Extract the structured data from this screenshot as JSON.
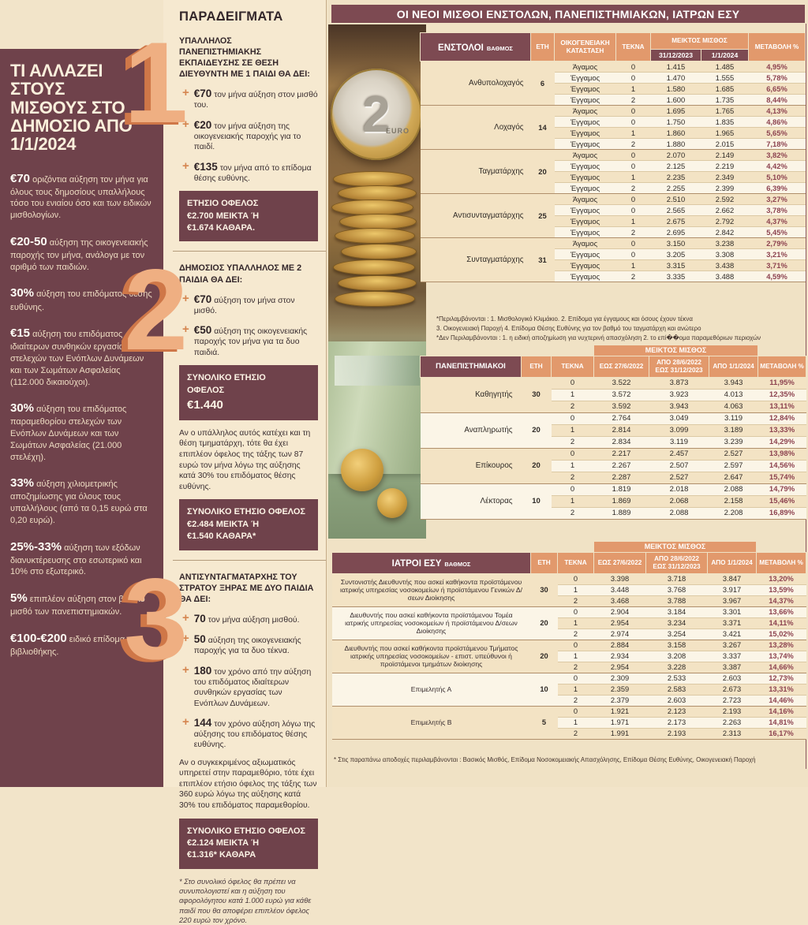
{
  "colors": {
    "maroon": "#7d4a52",
    "salmon": "#e2996c",
    "sidebar_maroon": "#6f424b",
    "accent_orange": "#d5854f",
    "cream": "#f2e4c9"
  },
  "main": {
    "title": "ΟΙ ΝΕΟΙ ΜΙΣΘΟΙ ΕΝΣΤΟΛΩΝ, ΠΑΝΕΠΙΣΤΗΜΙΑΚΩΝ, ΙΑΤΡΩΝ ΕΣΥ"
  },
  "photo": {
    "coin_number": "2",
    "coin_label": "EURO"
  },
  "sidebar": {
    "title": "ΤΙ ΑΛΛΑΖΕΙ ΣΤΟΥΣ ΜΙΣΘΟΥΣ ΣΤΟ ΔΗΜΟΣΙΟ ΑΠΟ 1/1/2024",
    "items": [
      {
        "highlight": "€70",
        "text": "οριζόντια αύξηση τον μήνα για όλους τους δημοσίους υπαλλήλους τόσο του ενιαίου όσο και των ειδικών μισθολογίων."
      },
      {
        "highlight": "€20-50",
        "text": "αύξηση της οικογενειακής παροχής τον μήνα, ανάλογα με τον αριθμό των παιδιών."
      },
      {
        "highlight": "30%",
        "text": "αύξηση του επιδόματος θέσης ευθύνης."
      },
      {
        "highlight": "€15",
        "text": "αύξηση του επιδόματος ιδιαίτερων συνθηκών εργασίας των στελεχών των Ενόπλων Δυνάμεων και των Σωμάτων Ασφαλείας (112.000 δικαιούχοι)."
      },
      {
        "highlight": "30%",
        "text": "αύξηση του επιδόματος παραμεθορίου στελεχών των Ενόπλων Δυνάμεων και των Σωμάτων Ασφαλείας (21.000 στελέχη)."
      },
      {
        "highlight": "33%",
        "text": "αύξηση χιλιομετρικής αποζημίωσης για όλους τους υπαλλήλους (από τα 0,15 ευρώ στα 0,20 ευρώ)."
      },
      {
        "highlight": "25%-33%",
        "text": "αύξηση των εξόδων διανυκτέρευσης στο εσωτερικό και 10% στο εξωτερικό."
      },
      {
        "highlight": "5%",
        "text": "επιπλέον αύξηση στον βασικό μισθό των πανεπιστημιακών."
      },
      {
        "highlight": "€100-€200",
        "text": "ειδικό επίδομα βιβλιοθήκης."
      }
    ]
  },
  "examples": {
    "title": "ΠΑΡΑΔΕΙΓΜΑΤΑ",
    "ex1": {
      "number": "1",
      "heading": "ΥΠΑΛΛΗΛΟΣ ΠΑΝΕΠΙΣΤΗΜΙΑΚΗΣ ΕΚΠΑΙΔΕΥΣΗΣ ΣΕ ΘΕΣΗ ΔΙΕΥΘΥΝΤΗ ΜΕ 1 ΠΑΙΔΙ ΘΑ ΔΕΙ:",
      "bullets": [
        {
          "amount": "€70",
          "text": "τον μήνα αύξηση στον μισθό του."
        },
        {
          "amount": "€20",
          "text": "τον μήνα αύξηση της οικογενειακής παροχής για το παιδί."
        },
        {
          "amount": "€135",
          "text": "τον μήνα από το επίδομα θέσης ευθύνης."
        }
      ],
      "box": [
        "ΕΤΗΣΙΟ ΟΦΕΛΟΣ",
        "€2.700 ΜΕΙΚΤΑ Ή",
        "€1.674 ΚΑΘΑΡΑ."
      ]
    },
    "ex2": {
      "number": "2",
      "heading": "ΔΗΜΟΣΙΟΣ ΥΠΑΛΛΗΛΟΣ ΜΕ 2 ΠΑΙΔΙΑ ΘΑ ΔΕΙ:",
      "bullets": [
        {
          "amount": "€70",
          "text": "αύξηση τον μήνα στον μισθό."
        },
        {
          "amount": "€50",
          "text": "αύξηση της οικογενειακής παροχής τον μήνα για τα δυο παιδιά."
        }
      ],
      "box1": [
        "ΣΥΝΟΛΙΚΟ ΕΤΗΣΙΟ",
        "ΟΦΕΛΟΣ",
        "€1.440"
      ],
      "note": "Αν ο υπάλληλος αυτός κατέχει και τη θέση τμηματάρχη, τότε θα έχει επιπλέον όφελος της τάξης των 87 ευρώ τον μήνα λόγω της αύξησης κατά 30% του επιδόματος θέσης ευθύνης.",
      "box2": [
        "ΣΥΝΟΛΙΚΟ ΕΤΗΣΙΟ ΟΦΕΛΟΣ",
        "€2.484 ΜΕΙΚΤΑ Ή",
        "€1.540 ΚΑΘΑΡΑ*"
      ]
    },
    "ex3": {
      "number": "3",
      "heading": "ΑΝΤΙΣΥΝΤΑΓΜΑΤΑΡΧΗΣ ΤΟΥ ΣΤΡΑΤΟΥ ΞΗΡΑΣ ΜΕ ΔΥΟ ΠΑΙΔΙΑ ΘΑ ΔΕΙ:",
      "bullets": [
        {
          "amount": "70",
          "text": "τον μήνα αύξηση μισθού."
        },
        {
          "amount": "50",
          "text": "αύξηση της οικογενειακής παροχής για τα δυο τέκνα."
        },
        {
          "amount": "180",
          "text": "τον χρόνο από την αύξηση του επιδόματος ιδιαίτερων συνθηκών εργασίας των Ενόπλων Δυνάμεων."
        },
        {
          "amount": "144",
          "text": "τον χρόνο αύξηση λόγω της αύξησης του επιδόματος θέσης ευθύνης."
        }
      ],
      "note": "Αν ο συγκεκριμένος αξιωματικός υπηρετεί στην παραμεθόριο, τότε έχει επιπλέον ετήσιο όφελος της τάξης των 360 ευρώ λόγω της αύξησης κατά 30% του επιδόματος παραμεθορίου.",
      "box": [
        "ΣΥΝΟΛΙΚΟ ΕΤΗΣΙΟ ΟΦΕΛΟΣ",
        "€2.124 ΜΕΙΚΤΑ Ή",
        "€1.316* ΚΑΘΑΡΑ"
      ],
      "footnote": "* Στο συνολικό όφελος θα πρέπει να συνυπολογιστεί και η αύξηση του αφορολόγητου κατά 1.000 ευρώ για κάθε παιδί που θα αποφέρει επιπλέον όφελος 220 ευρώ τον χρόνο."
    }
  },
  "tables": {
    "enstoloi": {
      "label": "ΕΝΣΤΟΛΟΙ",
      "sublabel": "ΒΑΘΜΟΣ",
      "headers": {
        "years": "ΕΤΗ",
        "status": "ΟΙΚΟΓΕΝΕΙΑΚΗ ΚΑΤΑΣΤΑΣΗ",
        "children": "ΤΕΚΝΑ",
        "gross": "ΜΕΙΚΤΟΣ ΜΙΣΘΟΣ",
        "d1": "31/12/2023",
        "d2": "1/1/2024",
        "change": "ΜΕΤΑΒΟΛΗ %"
      },
      "groups": [
        {
          "rank": "Ανθυπολοχαγός",
          "years": "6",
          "rows": [
            {
              "status": "Άγαμος",
              "children": "0",
              "v1": "1.415",
              "v2": "1.485",
              "change": "4,95%"
            },
            {
              "status": "Έγγαμος",
              "children": "0",
              "v1": "1.470",
              "v2": "1.555",
              "change": "5,78%"
            },
            {
              "status": "Έγγαμος",
              "children": "1",
              "v1": "1.580",
              "v2": "1.685",
              "change": "6,65%"
            },
            {
              "status": "Έγγαμος",
              "children": "2",
              "v1": "1.600",
              "v2": "1.735",
              "change": "8,44%"
            }
          ]
        },
        {
          "rank": "Λοχαγός",
          "years": "14",
          "rows": [
            {
              "status": "Άγαμος",
              "children": "0",
              "v1": "1.695",
              "v2": "1.765",
              "change": "4,13%"
            },
            {
              "status": "Έγγαμος",
              "children": "0",
              "v1": "1.750",
              "v2": "1.835",
              "change": "4,86%"
            },
            {
              "status": "Έγγαμος",
              "children": "1",
              "v1": "1.860",
              "v2": "1.965",
              "change": "5,65%"
            },
            {
              "status": "Έγγαμος",
              "children": "2",
              "v1": "1.880",
              "v2": "2.015",
              "change": "7,18%"
            }
          ]
        },
        {
          "rank": "Ταγματάρχης",
          "years": "20",
          "rows": [
            {
              "status": "Άγαμος",
              "children": "0",
              "v1": "2.070",
              "v2": "2.149",
              "change": "3,82%"
            },
            {
              "status": "Έγγαμος",
              "children": "0",
              "v1": "2.125",
              "v2": "2.219",
              "change": "4,42%"
            },
            {
              "status": "Έγγαμος",
              "children": "1",
              "v1": "2.235",
              "v2": "2.349",
              "change": "5,10%"
            },
            {
              "status": "Έγγαμος",
              "children": "2",
              "v1": "2.255",
              "v2": "2.399",
              "change": "6,39%"
            }
          ]
        },
        {
          "rank": "Αντισυνταγματάρχης",
          "years": "25",
          "rows": [
            {
              "status": "Άγαμος",
              "children": "0",
              "v1": "2.510",
              "v2": "2.592",
              "change": "3,27%"
            },
            {
              "status": "Έγγαμος",
              "children": "0",
              "v1": "2.565",
              "v2": "2.662",
              "change": "3,78%"
            },
            {
              "status": "Έγγαμος",
              "children": "1",
              "v1": "2.675",
              "v2": "2.792",
              "change": "4,37%"
            },
            {
              "status": "Έγγαμος",
              "children": "2",
              "v1": "2.695",
              "v2": "2.842",
              "change": "5,45%"
            }
          ]
        },
        {
          "rank": "Συνταγματάρχης",
          "years": "31",
          "rows": [
            {
              "status": "Άγαμος",
              "children": "0",
              "v1": "3.150",
              "v2": "3.238",
              "change": "2,79%"
            },
            {
              "status": "Έγγαμος",
              "children": "0",
              "v1": "3.205",
              "v2": "3.308",
              "change": "3,21%"
            },
            {
              "status": "Έγγαμος",
              "children": "1",
              "v1": "3.315",
              "v2": "3.438",
              "change": "3,71%"
            },
            {
              "status": "Έγγαμος",
              "children": "2",
              "v1": "3.335",
              "v2": "3.488",
              "change": "4,59%"
            }
          ]
        }
      ],
      "footnotes": [
        "*Περιλαμβάνονται : 1. Μισθολογικό Κλιμάκιο. 2. Επίδομα για έγγαμους και όσους έχουν τέκνα",
        "3. Οικογενειακή Παροχή 4. Επίδομα Θέσης Ευθύνης για τον βαθμό του ταγματάρχη και ανώτερο",
        "*Δεν Περιλαμβάνονται : 1. η ειδική αποζημίωση για νυχτερινή απασχόληση 2. το επί��ομα παραμεθόριων περιοχών"
      ]
    },
    "panepistimiakoi": {
      "label": "ΠΑΝΕΠΙΣΤΗΜΙΑΚΟΙ",
      "headers": {
        "years": "ΕΤΗ",
        "children": "ΤΕΚΝΑ",
        "gross": "ΜΕΙΚΤΟΣ ΜΙΣΘΟΣ",
        "p1": "ΕΩΣ 27/6/2022",
        "p2": "ΑΠΟ 28/6/2022 ΕΩΣ 31/12/2023",
        "p3": "ΑΠΟ 1/1/2024",
        "change": "ΜΕΤΑΒΟΛΗ %"
      },
      "groups": [
        {
          "rank": "Καθηγητής",
          "years": "30",
          "rows": [
            {
              "children": "0",
              "v1": "3.522",
              "v2": "3.873",
              "v3": "3.943",
              "change": "11,95%"
            },
            {
              "children": "1",
              "v1": "3.572",
              "v2": "3.923",
              "v3": "4.013",
              "change": "12,35%"
            },
            {
              "children": "2",
              "v1": "3.592",
              "v2": "3.943",
              "v3": "4.063",
              "change": "13,11%"
            }
          ]
        },
        {
          "rank": "Αναπληρωτής",
          "years": "20",
          "rows": [
            {
              "children": "0",
              "v1": "2.764",
              "v2": "3.049",
              "v3": "3.119",
              "change": "12,84%"
            },
            {
              "children": "1",
              "v1": "2.814",
              "v2": "3.099",
              "v3": "3.189",
              "change": "13,33%"
            },
            {
              "children": "2",
              "v1": "2.834",
              "v2": "3.119",
              "v3": "3.239",
              "change": "14,29%"
            }
          ]
        },
        {
          "rank": "Επίκουρος",
          "years": "20",
          "rows": [
            {
              "children": "0",
              "v1": "2.217",
              "v2": "2.457",
              "v3": "2.527",
              "change": "13,98%"
            },
            {
              "children": "1",
              "v1": "2.267",
              "v2": "2.507",
              "v3": "2.597",
              "change": "14,56%"
            },
            {
              "children": "2",
              "v1": "2.287",
              "v2": "2.527",
              "v3": "2.647",
              "change": "15,74%"
            }
          ]
        },
        {
          "rank": "Λέκτορας",
          "years": "10",
          "rows": [
            {
              "children": "0",
              "v1": "1.819",
              "v2": "2.018",
              "v3": "2.088",
              "change": "14,79%"
            },
            {
              "children": "1",
              "v1": "1.869",
              "v2": "2.068",
              "v3": "2.158",
              "change": "15,46%"
            },
            {
              "children": "2",
              "v1": "1.889",
              "v2": "2.088",
              "v3": "2.208",
              "change": "16,89%"
            }
          ]
        }
      ]
    },
    "iatroi": {
      "label": "ΙΑΤΡΟΙ ΕΣΥ",
      "sublabel": "ΒΑΘΜΟΣ",
      "headers": {
        "years": "ΕΤΗ",
        "children": "ΤΕΚΝΑ",
        "gross": "ΜΕΙΚΤΟΣ ΜΙΣΘΟΣ",
        "p1": "ΕΩΣ 27/6/2022",
        "p2": "ΑΠΟ 28/6/2022 ΕΩΣ 31/12/2023",
        "p3": "ΑΠΟ 1/1/2024",
        "change": "ΜΕΤΑΒΟΛΗ %"
      },
      "groups": [
        {
          "rank": "Συντονιστής Διευθυντής που ασκεί καθήκοντα προϊστάμενου ιατρικής υπηρεσίας νοσοκομείων ή προϊστάμενου Γενικών Δ/σεων Διοίκησης",
          "years": "30",
          "rows": [
            {
              "children": "0",
              "v1": "3.398",
              "v2": "3.718",
              "v3": "3.847",
              "change": "13,20%"
            },
            {
              "children": "1",
              "v1": "3.448",
              "v2": "3.768",
              "v3": "3.917",
              "change": "13,59%"
            },
            {
              "children": "2",
              "v1": "3.468",
              "v2": "3.788",
              "v3": "3.967",
              "change": "14,37%"
            }
          ]
        },
        {
          "rank": "Διευθυντής που ασκεί καθήκοντα προϊστάμενου Τομέα ιατρικής υπηρεσίας νοσοκομείων ή προϊστάμενου Δ/σεων Διοίκησης",
          "years": "20",
          "rows": [
            {
              "children": "0",
              "v1": "2.904",
              "v2": "3.184",
              "v3": "3.301",
              "change": "13,66%"
            },
            {
              "children": "1",
              "v1": "2.954",
              "v2": "3.234",
              "v3": "3.371",
              "change": "14,11%"
            },
            {
              "children": "2",
              "v1": "2.974",
              "v2": "3.254",
              "v3": "3.421",
              "change": "15,02%"
            }
          ]
        },
        {
          "rank": "Διευθυντής που ασκεί καθήκοντα προϊστάμενου Τμήματος ιατρικής υπηρεσίας νοσοκομείων - επιστ. υπεύθυνοι ή προϊστάμενοι τμημάτων διοίκησης",
          "years": "20",
          "rows": [
            {
              "children": "0",
              "v1": "2.884",
              "v2": "3.158",
              "v3": "3.267",
              "change": "13,28%"
            },
            {
              "children": "1",
              "v1": "2.934",
              "v2": "3.208",
              "v3": "3.337",
              "change": "13,74%"
            },
            {
              "children": "2",
              "v1": "2.954",
              "v2": "3.228",
              "v3": "3.387",
              "change": "14,66%"
            }
          ]
        },
        {
          "rank": "Επιμελητής Α",
          "years": "10",
          "rows": [
            {
              "children": "0",
              "v1": "2.309",
              "v2": "2.533",
              "v3": "2.603",
              "change": "12,73%"
            },
            {
              "children": "1",
              "v1": "2.359",
              "v2": "2.583",
              "v3": "2.673",
              "change": "13,31%"
            },
            {
              "children": "2",
              "v1": "2.379",
              "v2": "2.603",
              "v3": "2.723",
              "change": "14,46%"
            }
          ]
        },
        {
          "rank": "Επιμελητής Β",
          "years": "5",
          "rows": [
            {
              "children": "0",
              "v1": "1.921",
              "v2": "2.123",
              "v3": "2.193",
              "change": "14,16%"
            },
            {
              "children": "1",
              "v1": "1.971",
              "v2": "2.173",
              "v3": "2.263",
              "change": "14,81%"
            },
            {
              "children": "2",
              "v1": "1.991",
              "v2": "2.193",
              "v3": "2.313",
              "change": "16,17%"
            }
          ]
        }
      ],
      "footnote": "* Στις παραπάνω αποδοχές περιλαμβάνονται : Βασικός Μισθός, Επίδομα Νοσοκομειακής Απασχόλησης, Επίδομα Θέσης Ευθύνης, Οικογενειακή Παροχή"
    }
  }
}
